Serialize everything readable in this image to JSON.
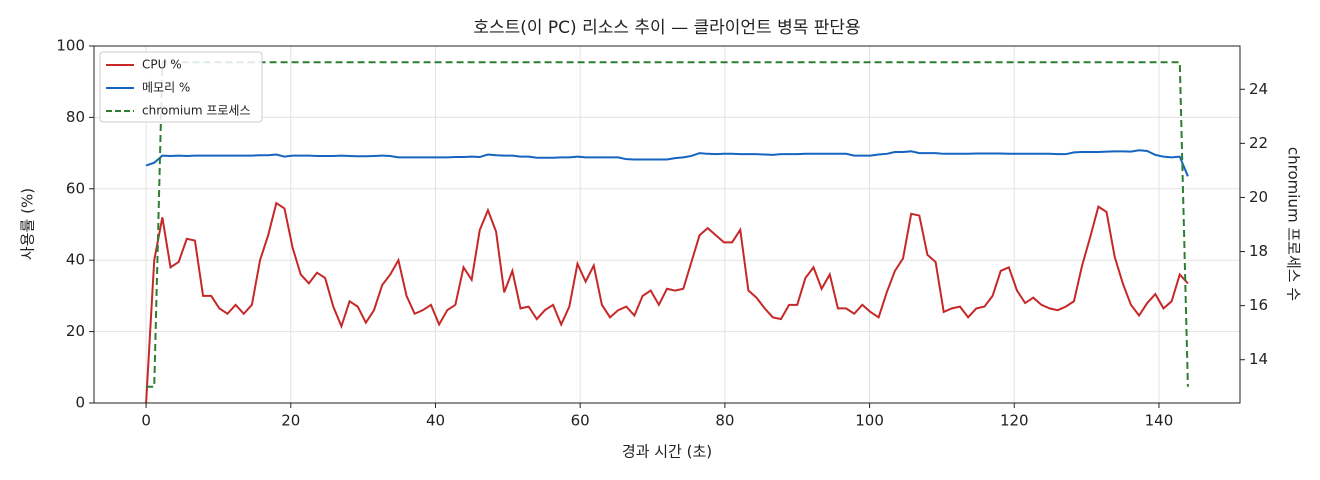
{
  "chart_data": {
    "type": "line",
    "title": "호스트(이 PC) 리소스 추이 — 클라이언트 병목 판단용",
    "xlabel": "경과 시간 (초)",
    "ylabel": "사용률 (%)",
    "y2label": "chromium 프로세스 수",
    "x": [
      0,
      1.125,
      2.25,
      3.375,
      4.5,
      5.625,
      6.75,
      7.875,
      9,
      10.125,
      11.25,
      12.375,
      13.5,
      14.625,
      15.75,
      16.875,
      18,
      19.125,
      20.25,
      21.375,
      22.5,
      23.625,
      24.75,
      25.875,
      27,
      28.125,
      29.25,
      30.375,
      31.5,
      32.625,
      33.75,
      34.875,
      36,
      37.125,
      38.25,
      39.375,
      40.5,
      41.625,
      42.75,
      43.875,
      45,
      46.125,
      47.25,
      48.375,
      49.5,
      50.625,
      51.75,
      52.875,
      54,
      55.125,
      56.25,
      57.375,
      58.5,
      59.625,
      60.75,
      61.875,
      63,
      64.125,
      65.25,
      66.375,
      67.5,
      68.625,
      69.75,
      70.875,
      72,
      73.125,
      74.25,
      75.375,
      76.5,
      77.625,
      78.75,
      79.875,
      81,
      82.125,
      83.25,
      84.375,
      85.5,
      86.625,
      87.75,
      88.875,
      90,
      91.125,
      92.25,
      93.375,
      94.5,
      95.625,
      96.75,
      97.875,
      99,
      100.125,
      101.25,
      102.375,
      103.5,
      104.625,
      105.75,
      106.875,
      108,
      109.125,
      110.25,
      111.375,
      112.5,
      113.625,
      114.75,
      115.875,
      117,
      118.125,
      119.25,
      120.375,
      121.5,
      122.625,
      123.75,
      124.875,
      126,
      127.125,
      128.25,
      129.375,
      130.5,
      131.625,
      132.75,
      133.875,
      135,
      136.125,
      137.25,
      138.375,
      139.5,
      140.625,
      141.75,
      142.875,
      144
    ],
    "series": [
      {
        "name": "CPU %",
        "color": "#c62828",
        "linestyle": "solid",
        "axis": "y",
        "values": [
          0,
          40,
          52,
          38,
          39.5,
          46,
          45.5,
          30,
          30,
          26.5,
          25,
          27.5,
          25,
          27.5,
          40,
          47,
          56,
          54.5,
          43.5,
          36,
          33.5,
          36.5,
          35,
          27,
          21.5,
          28.5,
          27,
          22.5,
          26,
          33,
          36,
          40,
          30,
          25,
          26,
          27.5,
          22,
          26,
          27.5,
          38,
          34.5,
          48.5,
          54,
          48,
          31,
          37,
          26.5,
          27,
          23.5,
          26,
          27.5,
          22,
          27,
          39,
          34,
          38.5,
          27.5,
          24,
          26,
          27,
          24.5,
          30,
          31.5,
          27.5,
          32,
          31.5,
          32,
          39.5,
          47,
          49,
          47,
          45,
          45,
          48.5,
          31.5,
          29.5,
          26.5,
          24,
          23.5,
          27.5,
          27.5,
          35,
          38,
          32,
          36,
          26.5,
          26.5,
          25,
          27.5,
          25.5,
          24,
          31,
          37,
          40.5,
          53,
          52.5,
          41.5,
          39.5,
          25.5,
          26.5,
          27,
          24,
          26.5,
          27,
          30,
          37,
          38,
          31.5,
          28,
          29.5,
          27.5,
          26.5,
          26,
          27,
          28.5,
          38.5,
          46.5,
          55,
          53.5,
          41,
          33.5,
          27.5,
          24.5,
          28,
          30.5,
          26.5,
          28.5,
          36,
          33.5
        ]
      },
      {
        "name": "메모리 %",
        "color": "#1565c0",
        "linestyle": "solid",
        "axis": "y",
        "values": [
          66.5,
          67.3,
          69.3,
          69.2,
          69.3,
          69.2,
          69.3,
          69.3,
          69.3,
          69.3,
          69.3,
          69.3,
          69.3,
          69.3,
          69.4,
          69.4,
          69.6,
          69.0,
          69.3,
          69.3,
          69.3,
          69.2,
          69.2,
          69.2,
          69.3,
          69.2,
          69.1,
          69.1,
          69.2,
          69.3,
          69.2,
          68.8,
          68.8,
          68.8,
          68.8,
          68.8,
          68.8,
          68.8,
          68.9,
          68.9,
          69.0,
          68.9,
          69.6,
          69.4,
          69.3,
          69.3,
          69.0,
          69.0,
          68.7,
          68.7,
          68.7,
          68.8,
          68.8,
          69.0,
          68.8,
          68.8,
          68.8,
          68.8,
          68.8,
          68.3,
          68.2,
          68.2,
          68.2,
          68.2,
          68.2,
          68.6,
          68.8,
          69.2,
          70.0,
          69.8,
          69.7,
          69.8,
          69.8,
          69.7,
          69.7,
          69.7,
          69.6,
          69.5,
          69.7,
          69.7,
          69.7,
          69.8,
          69.8,
          69.8,
          69.8,
          69.8,
          69.8,
          69.3,
          69.3,
          69.3,
          69.6,
          69.8,
          70.3,
          70.3,
          70.5,
          70.0,
          70.0,
          70.0,
          69.8,
          69.8,
          69.8,
          69.8,
          69.9,
          69.9,
          69.9,
          69.9,
          69.8,
          69.8,
          69.8,
          69.8,
          69.8,
          69.8,
          69.7,
          69.7,
          70.2,
          70.3,
          70.3,
          70.3,
          70.4,
          70.5,
          70.5,
          70.4,
          70.8,
          70.6,
          69.5,
          69.0,
          68.8,
          69.0,
          63.5
        ]
      },
      {
        "name": "chromium 프로세스",
        "color": "#2e7d32",
        "linestyle": "dashed",
        "axis": "y2",
        "values": [
          13,
          13,
          25,
          25,
          25,
          25,
          25,
          25,
          25,
          25,
          25,
          25,
          25,
          25,
          25,
          25,
          25,
          25,
          25,
          25,
          25,
          25,
          25,
          25,
          25,
          25,
          25,
          25,
          25,
          25,
          25,
          25,
          25,
          25,
          25,
          25,
          25,
          25,
          25,
          25,
          25,
          25,
          25,
          25,
          25,
          25,
          25,
          25,
          25,
          25,
          25,
          25,
          25,
          25,
          25,
          25,
          25,
          25,
          25,
          25,
          25,
          25,
          25,
          25,
          25,
          25,
          25,
          25,
          25,
          25,
          25,
          25,
          25,
          25,
          25,
          25,
          25,
          25,
          25,
          25,
          25,
          25,
          25,
          25,
          25,
          25,
          25,
          25,
          25,
          25,
          25,
          25,
          25,
          25,
          25,
          25,
          25,
          25,
          25,
          25,
          25,
          25,
          25,
          25,
          25,
          25,
          25,
          25,
          25,
          25,
          25,
          25,
          25,
          25,
          25,
          25,
          25,
          25,
          25,
          25,
          25,
          25,
          25,
          25,
          25,
          25,
          25,
          25,
          13
        ]
      }
    ],
    "xlim": [
      -7.2,
      151.2
    ],
    "xticks": [
      0,
      20,
      40,
      60,
      80,
      100,
      120,
      140
    ],
    "ylim": [
      0,
      100
    ],
    "yticks": [
      0,
      20,
      40,
      60,
      80,
      100
    ],
    "y2lim": [
      12.4,
      25.6
    ],
    "y2ticks": [
      14,
      16,
      18,
      20,
      22,
      24
    ],
    "grid": true,
    "legend": "upper left"
  }
}
